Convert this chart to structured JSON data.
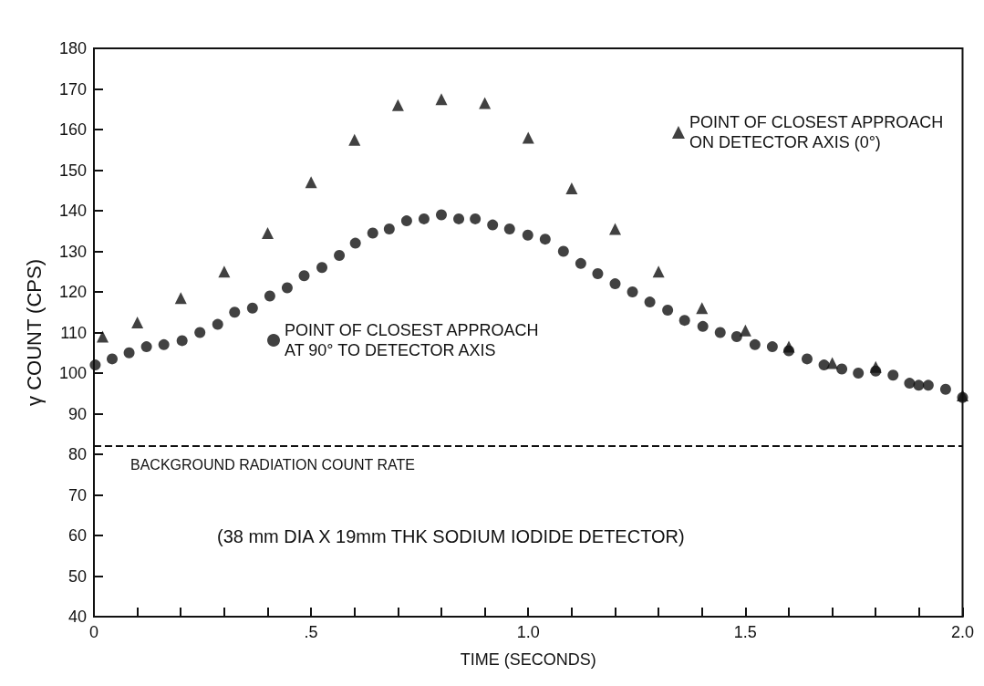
{
  "chart_data": {
    "type": "scatter",
    "xlabel": "TIME (SECONDS)",
    "ylabel": "γ COUNT (CPS)",
    "xlim": [
      0,
      2
    ],
    "xticks": [
      0,
      {
        "value": 0.1,
        "label": null
      },
      {
        "value": 0.2,
        "label": null
      },
      {
        "value": 0.3,
        "label": null
      },
      {
        "value": 0.4,
        "label": null
      },
      {
        "value": 0.5,
        "label": ".5"
      },
      {
        "value": 0.6,
        "label": null
      },
      {
        "value": 0.7,
        "label": null
      },
      {
        "value": 0.8,
        "label": null
      },
      {
        "value": 0.9,
        "label": null
      },
      {
        "value": 1,
        "label": "1.0"
      },
      {
        "value": 1.1,
        "label": null
      },
      {
        "value": 1.2,
        "label": null
      },
      {
        "value": 1.3,
        "label": null
      },
      {
        "value": 1.4,
        "label": null
      },
      {
        "value": 1.5,
        "label": "1.5"
      },
      {
        "value": 1.6,
        "label": null
      },
      {
        "value": 1.7,
        "label": null
      },
      {
        "value": 1.8,
        "label": null
      },
      {
        "value": 1.9,
        "label": null
      },
      {
        "value": 2,
        "label": "2.0"
      }
    ],
    "ylim": [
      40,
      180
    ],
    "yticks": [
      40,
      50,
      60,
      70,
      80,
      90,
      100,
      110,
      120,
      130,
      140,
      150,
      160,
      170,
      180
    ],
    "grid": false,
    "legend": "top right",
    "series": [
      {
        "name": "POINT OF CLOSEST APPROACH\nON DETECTOR AXIS (0°)",
        "color": "#111111",
        "marker": "triangle",
        "x": [
          0.02,
          0.1,
          0.2,
          0.3,
          0.4,
          0.5,
          0.6,
          0.7,
          0.8,
          0.9,
          1.0,
          1.1,
          1.2,
          1.3,
          1.4,
          1.5,
          1.6,
          1.7,
          1.8,
          2.0
        ],
        "values": [
          109,
          112.5,
          118.5,
          125,
          134.5,
          147,
          157.5,
          166,
          167.5,
          166.5,
          158,
          145.5,
          135.5,
          125,
          116,
          110.5,
          106.5,
          102.5,
          101.5,
          94.5
        ]
      },
      {
        "name": "POINT OF CLOSEST APPROACH\nAT 90° TO DETECTOR AXIS",
        "color": "#111111",
        "marker": "circle",
        "x": [
          0.003,
          0.042,
          0.081,
          0.121,
          0.161,
          0.203,
          0.244,
          0.285,
          0.324,
          0.365,
          0.405,
          0.445,
          0.484,
          0.525,
          0.565,
          0.602,
          0.642,
          0.68,
          0.72,
          0.76,
          0.8,
          0.84,
          0.878,
          0.918,
          0.957,
          0.999,
          1.039,
          1.081,
          1.121,
          1.16,
          1.2,
          1.24,
          1.28,
          1.321,
          1.36,
          1.402,
          1.442,
          1.48,
          1.522,
          1.562,
          1.6,
          1.642,
          1.681,
          1.722,
          1.76,
          1.8,
          1.84,
          1.878,
          1.899,
          1.921,
          1.961,
          2.0
        ],
        "values": [
          102,
          103.5,
          105,
          106.5,
          107,
          108,
          110,
          112,
          115,
          116,
          119,
          121,
          124,
          126,
          129,
          132,
          134.5,
          135.5,
          137.5,
          138,
          139,
          138,
          138,
          136.5,
          135.5,
          134,
          133,
          130,
          127,
          124.5,
          122,
          120,
          117.5,
          115.5,
          113,
          111.5,
          110,
          109,
          107,
          106.5,
          105.5,
          103.5,
          102,
          101,
          100,
          100.5,
          99.5,
          97.5,
          97,
          97,
          96,
          94
        ]
      }
    ],
    "ref_lines": [
      {
        "axis": "y",
        "value": 82,
        "label": "BACKGROUND RADIATION COUNT RATE",
        "line_style": "dashed",
        "color": "#111111"
      }
    ],
    "annotations": [
      "(38 mm DIA X 19mm THK SODIUM IODIDE DETECTOR)"
    ]
  }
}
